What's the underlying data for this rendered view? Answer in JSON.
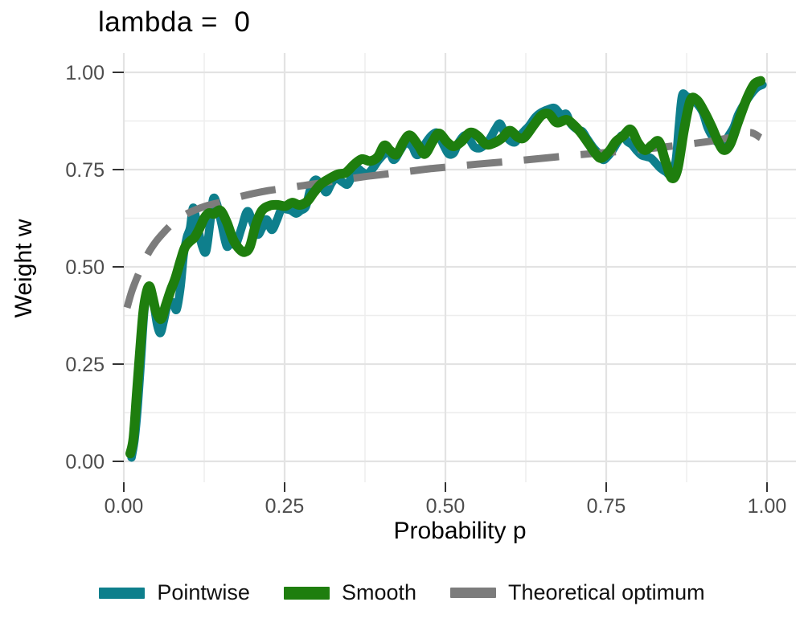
{
  "figure": {
    "title": "lambda =  0",
    "background": "#ffffff"
  },
  "axes": {
    "x_title": "Probability p",
    "y_title": "Weight w",
    "tick_color": "#4d4d4d",
    "grid_major_color": "#e3e3e3",
    "grid_minor_color": "#ededed"
  },
  "legend": {
    "items": [
      {
        "label": "Pointwise",
        "color": "#0e7f8c",
        "key_h": 14
      },
      {
        "label": "Smooth",
        "color": "#1e7e0e",
        "key_h": 16
      },
      {
        "label": "Theoretical optimum",
        "color": "#7c7c7c",
        "key_h": 13
      }
    ]
  },
  "chart_data": {
    "type": "line",
    "title": "lambda =  0",
    "xlabel": "Probability p",
    "ylabel": "Weight w",
    "xlim": [
      0,
      1
    ],
    "ylim": [
      0,
      1
    ],
    "grid": true,
    "legend_position": "bottom",
    "x_ticks": {
      "values": [
        0,
        0.25,
        0.5,
        0.75,
        1
      ],
      "labels": [
        "0.00",
        "0.25",
        "0.50",
        "0.75",
        "1.00"
      ]
    },
    "y_ticks": {
      "values": [
        0,
        0.25,
        0.5,
        0.75,
        1
      ],
      "labels": [
        "0.00",
        "0.25",
        "0.50",
        "0.75",
        "1.00"
      ]
    },
    "minor_breaks": [
      0.125,
      0.375,
      0.625,
      0.875
    ],
    "draw_order": [
      0,
      2,
      1
    ],
    "series": [
      {
        "name": "Pointwise",
        "color": "#0e7f8c",
        "dash": "solid",
        "width": 10.5,
        "points": [
          [
            0.012,
            0.01
          ],
          [
            0.017,
            0.06
          ],
          [
            0.022,
            0.15
          ],
          [
            0.027,
            0.27
          ],
          [
            0.032,
            0.39
          ],
          [
            0.037,
            0.425
          ],
          [
            0.042,
            0.44
          ],
          [
            0.047,
            0.4
          ],
          [
            0.052,
            0.35
          ],
          [
            0.057,
            0.33
          ],
          [
            0.062,
            0.36
          ],
          [
            0.067,
            0.396
          ],
          [
            0.072,
            0.405
          ],
          [
            0.077,
            0.408
          ],
          [
            0.082,
            0.39
          ],
          [
            0.088,
            0.446
          ],
          [
            0.093,
            0.53
          ],
          [
            0.098,
            0.576
          ],
          [
            0.103,
            0.6
          ],
          [
            0.108,
            0.652
          ],
          [
            0.115,
            0.6
          ],
          [
            0.122,
            0.552
          ],
          [
            0.128,
            0.54
          ],
          [
            0.134,
            0.61
          ],
          [
            0.139,
            0.675
          ],
          [
            0.145,
            0.66
          ],
          [
            0.152,
            0.61
          ],
          [
            0.16,
            0.553
          ],
          [
            0.167,
            0.567
          ],
          [
            0.174,
            0.557
          ],
          [
            0.183,
            0.6
          ],
          [
            0.192,
            0.643
          ],
          [
            0.2,
            0.615
          ],
          [
            0.208,
            0.583
          ],
          [
            0.215,
            0.6
          ],
          [
            0.222,
            0.622
          ],
          [
            0.23,
            0.595
          ],
          [
            0.238,
            0.62
          ],
          [
            0.245,
            0.648
          ],
          [
            0.253,
            0.648
          ],
          [
            0.26,
            0.645
          ],
          [
            0.268,
            0.637
          ],
          [
            0.275,
            0.645
          ],
          [
            0.283,
            0.655
          ],
          [
            0.29,
            0.7
          ],
          [
            0.298,
            0.724
          ],
          [
            0.308,
            0.707
          ],
          [
            0.315,
            0.692
          ],
          [
            0.323,
            0.715
          ],
          [
            0.33,
            0.728
          ],
          [
            0.34,
            0.718
          ],
          [
            0.348,
            0.712
          ],
          [
            0.355,
            0.735
          ],
          [
            0.363,
            0.752
          ],
          [
            0.37,
            0.745
          ],
          [
            0.378,
            0.738
          ],
          [
            0.388,
            0.755
          ],
          [
            0.395,
            0.772
          ],
          [
            0.405,
            0.79
          ],
          [
            0.413,
            0.795
          ],
          [
            0.42,
            0.775
          ],
          [
            0.43,
            0.8
          ],
          [
            0.438,
            0.818
          ],
          [
            0.448,
            0.81
          ],
          [
            0.455,
            0.788
          ],
          [
            0.463,
            0.797
          ],
          [
            0.47,
            0.82
          ],
          [
            0.48,
            0.84
          ],
          [
            0.488,
            0.843
          ],
          [
            0.498,
            0.81
          ],
          [
            0.505,
            0.79
          ],
          [
            0.513,
            0.793
          ],
          [
            0.52,
            0.818
          ],
          [
            0.53,
            0.838
          ],
          [
            0.538,
            0.826
          ],
          [
            0.545,
            0.808
          ],
          [
            0.553,
            0.805
          ],
          [
            0.56,
            0.812
          ],
          [
            0.568,
            0.826
          ],
          [
            0.578,
            0.855
          ],
          [
            0.585,
            0.868
          ],
          [
            0.593,
            0.84
          ],
          [
            0.6,
            0.825
          ],
          [
            0.608,
            0.82
          ],
          [
            0.615,
            0.835
          ],
          [
            0.623,
            0.85
          ],
          [
            0.63,
            0.862
          ],
          [
            0.64,
            0.885
          ],
          [
            0.65,
            0.898
          ],
          [
            0.66,
            0.905
          ],
          [
            0.67,
            0.908
          ],
          [
            0.68,
            0.89
          ],
          [
            0.688,
            0.893
          ],
          [
            0.695,
            0.868
          ],
          [
            0.705,
            0.853
          ],
          [
            0.713,
            0.848
          ],
          [
            0.72,
            0.83
          ],
          [
            0.73,
            0.806
          ],
          [
            0.738,
            0.792
          ],
          [
            0.745,
            0.775
          ],
          [
            0.753,
            0.785
          ],
          [
            0.76,
            0.8
          ],
          [
            0.768,
            0.822
          ],
          [
            0.775,
            0.838
          ],
          [
            0.783,
            0.822
          ],
          [
            0.79,
            0.814
          ],
          [
            0.798,
            0.798
          ],
          [
            0.805,
            0.787
          ],
          [
            0.813,
            0.783
          ],
          [
            0.82,
            0.779
          ],
          [
            0.828,
            0.765
          ],
          [
            0.835,
            0.753
          ],
          [
            0.843,
            0.744
          ],
          [
            0.85,
            0.738
          ],
          [
            0.858,
            0.772
          ],
          [
            0.863,
            0.862
          ],
          [
            0.868,
            0.94
          ],
          [
            0.875,
            0.938
          ],
          [
            0.883,
            0.932
          ],
          [
            0.89,
            0.922
          ],
          [
            0.9,
            0.898
          ],
          [
            0.908,
            0.857
          ],
          [
            0.918,
            0.828
          ],
          [
            0.925,
            0.818
          ],
          [
            0.933,
            0.812
          ],
          [
            0.94,
            0.836
          ],
          [
            0.948,
            0.858
          ],
          [
            0.955,
            0.89
          ],
          [
            0.963,
            0.915
          ],
          [
            0.97,
            0.932
          ],
          [
            0.978,
            0.95
          ],
          [
            0.985,
            0.962
          ],
          [
            0.993,
            0.968
          ]
        ]
      },
      {
        "name": "Smooth",
        "color": "#1e7e0e",
        "dash": "solid",
        "width": 12,
        "points": [
          [
            0.01,
            0.02
          ],
          [
            0.015,
            0.06
          ],
          [
            0.02,
            0.17
          ],
          [
            0.025,
            0.28
          ],
          [
            0.03,
            0.38
          ],
          [
            0.035,
            0.432
          ],
          [
            0.04,
            0.45
          ],
          [
            0.045,
            0.42
          ],
          [
            0.05,
            0.386
          ],
          [
            0.058,
            0.366
          ],
          [
            0.065,
            0.4
          ],
          [
            0.073,
            0.44
          ],
          [
            0.08,
            0.47
          ],
          [
            0.088,
            0.515
          ],
          [
            0.095,
            0.55
          ],
          [
            0.103,
            0.566
          ],
          [
            0.11,
            0.576
          ],
          [
            0.118,
            0.6
          ],
          [
            0.125,
            0.625
          ],
          [
            0.132,
            0.638
          ],
          [
            0.14,
            0.636
          ],
          [
            0.15,
            0.645
          ],
          [
            0.16,
            0.615
          ],
          [
            0.17,
            0.57
          ],
          [
            0.18,
            0.545
          ],
          [
            0.188,
            0.538
          ],
          [
            0.196,
            0.552
          ],
          [
            0.205,
            0.607
          ],
          [
            0.215,
            0.645
          ],
          [
            0.228,
            0.658
          ],
          [
            0.24,
            0.659
          ],
          [
            0.251,
            0.656
          ],
          [
            0.262,
            0.665
          ],
          [
            0.273,
            0.659
          ],
          [
            0.285,
            0.668
          ],
          [
            0.295,
            0.69
          ],
          [
            0.306,
            0.712
          ],
          [
            0.32,
            0.727
          ],
          [
            0.333,
            0.738
          ],
          [
            0.345,
            0.742
          ],
          [
            0.358,
            0.763
          ],
          [
            0.37,
            0.777
          ],
          [
            0.383,
            0.772
          ],
          [
            0.395,
            0.783
          ],
          [
            0.405,
            0.812
          ],
          [
            0.414,
            0.799
          ],
          [
            0.424,
            0.789
          ],
          [
            0.435,
            0.822
          ],
          [
            0.445,
            0.838
          ],
          [
            0.458,
            0.812
          ],
          [
            0.468,
            0.79
          ],
          [
            0.48,
            0.822
          ],
          [
            0.49,
            0.843
          ],
          [
            0.503,
            0.82
          ],
          [
            0.513,
            0.81
          ],
          [
            0.525,
            0.822
          ],
          [
            0.538,
            0.845
          ],
          [
            0.55,
            0.837
          ],
          [
            0.563,
            0.815
          ],
          [
            0.575,
            0.818
          ],
          [
            0.588,
            0.831
          ],
          [
            0.6,
            0.85
          ],
          [
            0.613,
            0.833
          ],
          [
            0.623,
            0.833
          ],
          [
            0.638,
            0.866
          ],
          [
            0.65,
            0.89
          ],
          [
            0.661,
            0.893
          ],
          [
            0.673,
            0.871
          ],
          [
            0.688,
            0.878
          ],
          [
            0.698,
            0.867
          ],
          [
            0.71,
            0.846
          ],
          [
            0.723,
            0.816
          ],
          [
            0.735,
            0.788
          ],
          [
            0.743,
            0.78
          ],
          [
            0.755,
            0.798
          ],
          [
            0.765,
            0.822
          ],
          [
            0.776,
            0.836
          ],
          [
            0.788,
            0.853
          ],
          [
            0.799,
            0.82
          ],
          [
            0.81,
            0.8
          ],
          [
            0.822,
            0.814
          ],
          [
            0.832,
            0.822
          ],
          [
            0.842,
            0.772
          ],
          [
            0.852,
            0.728
          ],
          [
            0.861,
            0.752
          ],
          [
            0.871,
            0.852
          ],
          [
            0.881,
            0.928
          ],
          [
            0.891,
            0.929
          ],
          [
            0.902,
            0.9
          ],
          [
            0.914,
            0.86
          ],
          [
            0.924,
            0.822
          ],
          [
            0.933,
            0.8
          ],
          [
            0.943,
            0.816
          ],
          [
            0.955,
            0.872
          ],
          [
            0.968,
            0.93
          ],
          [
            0.98,
            0.969
          ],
          [
            0.99,
            0.978
          ]
        ]
      },
      {
        "name": "Theoretical optimum",
        "color": "#7c7c7c",
        "dash": "dashed",
        "width": 9,
        "points": [
          [
            0.005,
            0.395
          ],
          [
            0.013,
            0.44
          ],
          [
            0.025,
            0.49
          ],
          [
            0.038,
            0.535
          ],
          [
            0.05,
            0.565
          ],
          [
            0.063,
            0.59
          ],
          [
            0.075,
            0.61
          ],
          [
            0.088,
            0.625
          ],
          [
            0.1,
            0.638
          ],
          [
            0.125,
            0.655
          ],
          [
            0.15,
            0.666
          ],
          [
            0.175,
            0.678
          ],
          [
            0.2,
            0.688
          ],
          [
            0.225,
            0.696
          ],
          [
            0.25,
            0.702
          ],
          [
            0.275,
            0.708
          ],
          [
            0.3,
            0.714
          ],
          [
            0.325,
            0.72
          ],
          [
            0.35,
            0.726
          ],
          [
            0.375,
            0.732
          ],
          [
            0.4,
            0.737
          ],
          [
            0.425,
            0.742
          ],
          [
            0.45,
            0.747
          ],
          [
            0.475,
            0.752
          ],
          [
            0.5,
            0.756
          ],
          [
            0.55,
            0.764
          ],
          [
            0.6,
            0.771
          ],
          [
            0.65,
            0.779
          ],
          [
            0.7,
            0.787
          ],
          [
            0.75,
            0.794
          ],
          [
            0.8,
            0.801
          ],
          [
            0.85,
            0.81
          ],
          [
            0.9,
            0.82
          ],
          [
            0.93,
            0.828
          ],
          [
            0.955,
            0.838
          ],
          [
            0.975,
            0.845
          ],
          [
            0.99,
            0.832
          ]
        ]
      }
    ]
  }
}
